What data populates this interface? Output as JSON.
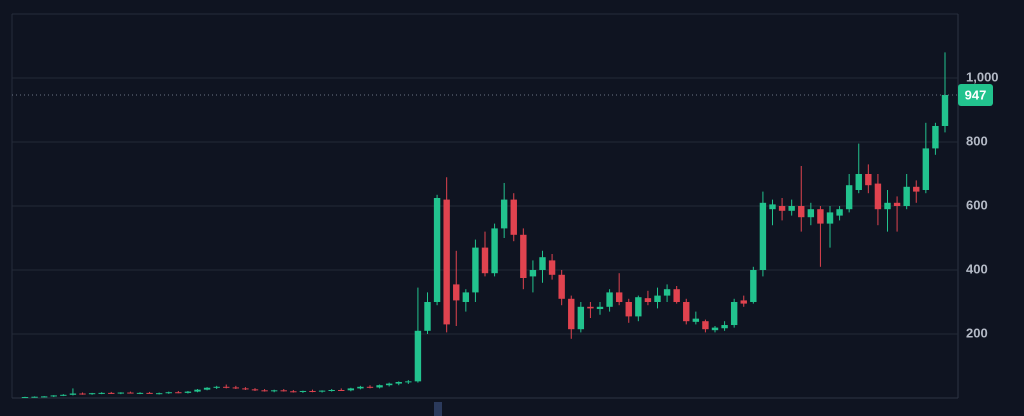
{
  "chart_data": {
    "type": "candlestick",
    "up_color": "#22c38e",
    "down_color": "#e0434f",
    "ylim": [
      0,
      1200
    ],
    "yticks": [
      200,
      400,
      600,
      {
        "value": 1000,
        "label": "1,000"
      },
      800
    ],
    "grid": true,
    "open": [
      2,
      3,
      4,
      5,
      8,
      10,
      14,
      12,
      15,
      16,
      14,
      17,
      15,
      16,
      13,
      15,
      18,
      16,
      20,
      26,
      32,
      35,
      33,
      30,
      27,
      24,
      22,
      24,
      21,
      19,
      22,
      20,
      23,
      25,
      24,
      30,
      35,
      33,
      40,
      45,
      50,
      52,
      210,
      300,
      620,
      355,
      300,
      330,
      470,
      390,
      530,
      620,
      510,
      380,
      400,
      430,
      385,
      310,
      215,
      285,
      278,
      285,
      330,
      300,
      255,
      312,
      300,
      320,
      340,
      300,
      238,
      240,
      212,
      218,
      228,
      305,
      300,
      400,
      590,
      600,
      585,
      600,
      565,
      590,
      545,
      570,
      590,
      650,
      700,
      670,
      590,
      610,
      600,
      660,
      650,
      780,
      850
    ],
    "high": [
      4,
      5,
      6,
      9,
      12,
      30,
      17,
      16,
      18,
      19,
      18,
      20,
      18,
      19,
      17,
      20,
      22,
      22,
      28,
      34,
      38,
      42,
      38,
      34,
      31,
      28,
      26,
      28,
      25,
      23,
      26,
      24,
      28,
      30,
      32,
      38,
      40,
      42,
      48,
      52,
      56,
      345,
      330,
      635,
      690,
      460,
      340,
      495,
      520,
      545,
      672,
      640,
      530,
      430,
      460,
      450,
      400,
      320,
      300,
      300,
      300,
      340,
      390,
      310,
      320,
      335,
      345,
      355,
      350,
      310,
      270,
      245,
      225,
      240,
      310,
      320,
      410,
      645,
      620,
      625,
      620,
      725,
      610,
      600,
      600,
      600,
      700,
      795,
      730,
      700,
      650,
      630,
      700,
      680,
      860,
      860,
      1080
    ],
    "low": [
      0,
      1,
      2,
      3,
      6,
      8,
      10,
      10,
      12,
      13,
      12,
      14,
      12,
      14,
      11,
      13,
      15,
      14,
      18,
      24,
      28,
      30,
      28,
      25,
      22,
      20,
      18,
      20,
      17,
      16,
      18,
      17,
      20,
      22,
      21,
      27,
      30,
      30,
      36,
      40,
      44,
      48,
      200,
      290,
      205,
      225,
      270,
      300,
      380,
      380,
      500,
      490,
      340,
      330,
      360,
      370,
      290,
      185,
      205,
      250,
      260,
      270,
      290,
      235,
      240,
      290,
      280,
      300,
      295,
      230,
      230,
      205,
      205,
      210,
      220,
      285,
      295,
      380,
      540,
      555,
      570,
      520,
      540,
      410,
      470,
      555,
      580,
      640,
      640,
      540,
      520,
      520,
      590,
      610,
      640,
      760,
      830
    ],
    "close": [
      3,
      4,
      5,
      8,
      10,
      14,
      12,
      15,
      16,
      14,
      17,
      15,
      16,
      13,
      15,
      18,
      16,
      20,
      26,
      32,
      35,
      33,
      30,
      27,
      24,
      22,
      24,
      21,
      19,
      22,
      20,
      23,
      25,
      24,
      30,
      35,
      33,
      40,
      45,
      50,
      52,
      210,
      300,
      625,
      230,
      305,
      330,
      470,
      390,
      530,
      620,
      510,
      375,
      400,
      440,
      385,
      310,
      215,
      285,
      280,
      285,
      330,
      300,
      255,
      315,
      300,
      320,
      340,
      300,
      240,
      248,
      215,
      220,
      228,
      300,
      295,
      400,
      610,
      605,
      585,
      600,
      565,
      590,
      545,
      580,
      590,
      665,
      700,
      665,
      590,
      610,
      600,
      660,
      645,
      780,
      850,
      947
    ]
  }
}
